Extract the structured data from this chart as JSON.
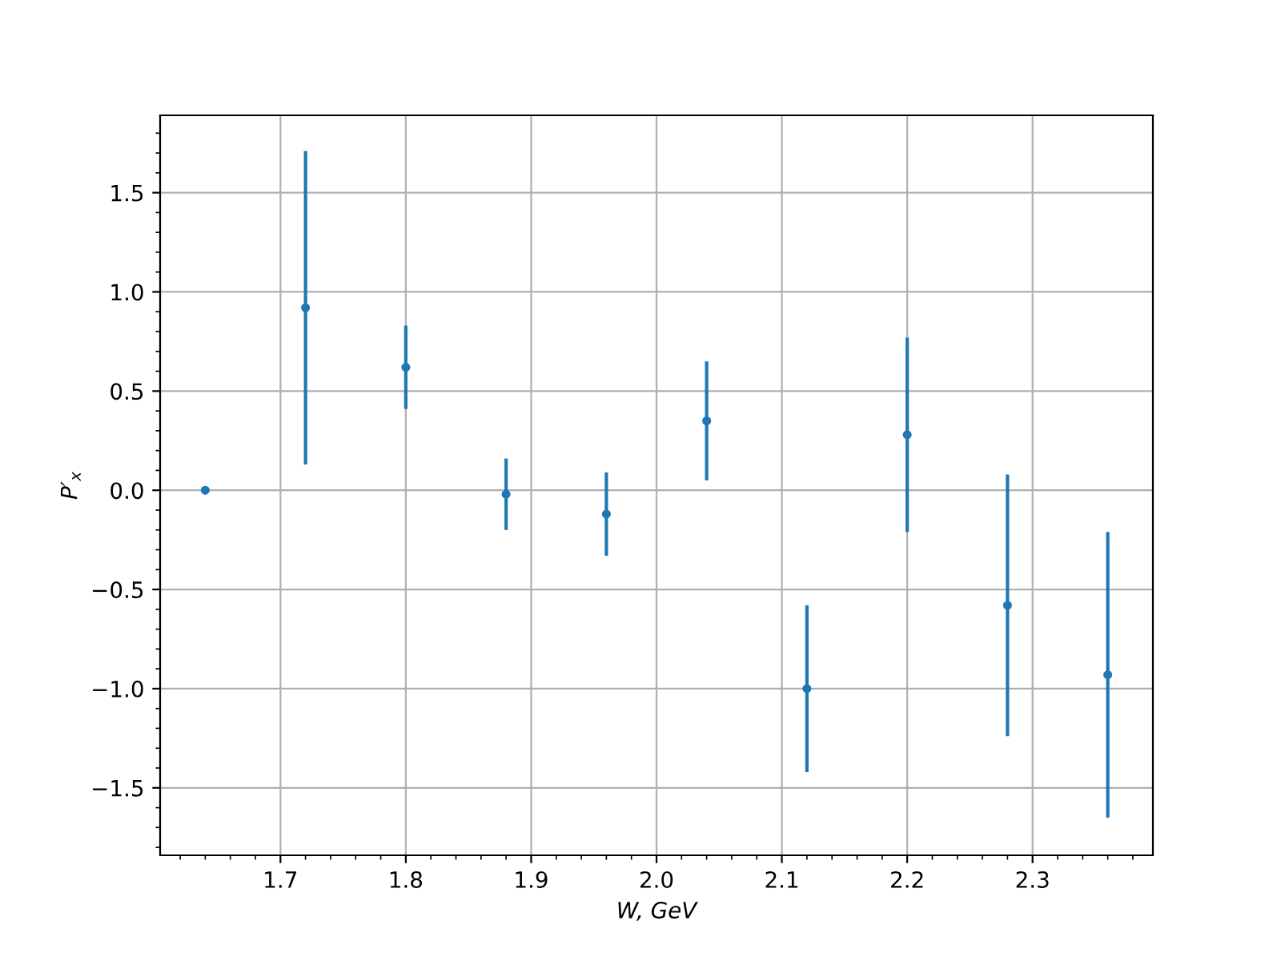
{
  "chart_data": {
    "type": "scatter",
    "xlabel": "W, GeV",
    "ylabel": "P′$_{x}$",
    "x": [
      1.64,
      1.72,
      1.8,
      1.88,
      1.96,
      2.04,
      2.12,
      2.2,
      2.28,
      2.36
    ],
    "series": [
      {
        "color": "#1f77b4",
        "values": [
          0.0,
          0.92,
          0.62,
          -0.02,
          -0.12,
          0.35,
          -1.0,
          0.28,
          -0.58,
          -0.93
        ],
        "errors": [
          0,
          0.79,
          0.21,
          0.18,
          0.21,
          0.3,
          0.42,
          0.49,
          0.66,
          0.72
        ]
      }
    ],
    "xlim": [
      1.604,
      2.396
    ],
    "ylim": [
      -1.84,
      1.89
    ],
    "xticks": [
      1.7,
      1.8,
      1.9,
      {
        "value": 2,
        "label": "2.0"
      },
      2.1,
      2.2,
      2.3
    ],
    "yticks": [
      {
        "value": -1.5,
        "label": "−1.5"
      },
      {
        "value": -1,
        "label": "−1.0"
      },
      {
        "value": -0.5,
        "label": "−0.5"
      },
      {
        "value": 0,
        "label": "0.0"
      },
      0.5,
      {
        "value": 1,
        "label": "1.0"
      },
      1.5
    ],
    "grid": true,
    "marker": "circle"
  }
}
